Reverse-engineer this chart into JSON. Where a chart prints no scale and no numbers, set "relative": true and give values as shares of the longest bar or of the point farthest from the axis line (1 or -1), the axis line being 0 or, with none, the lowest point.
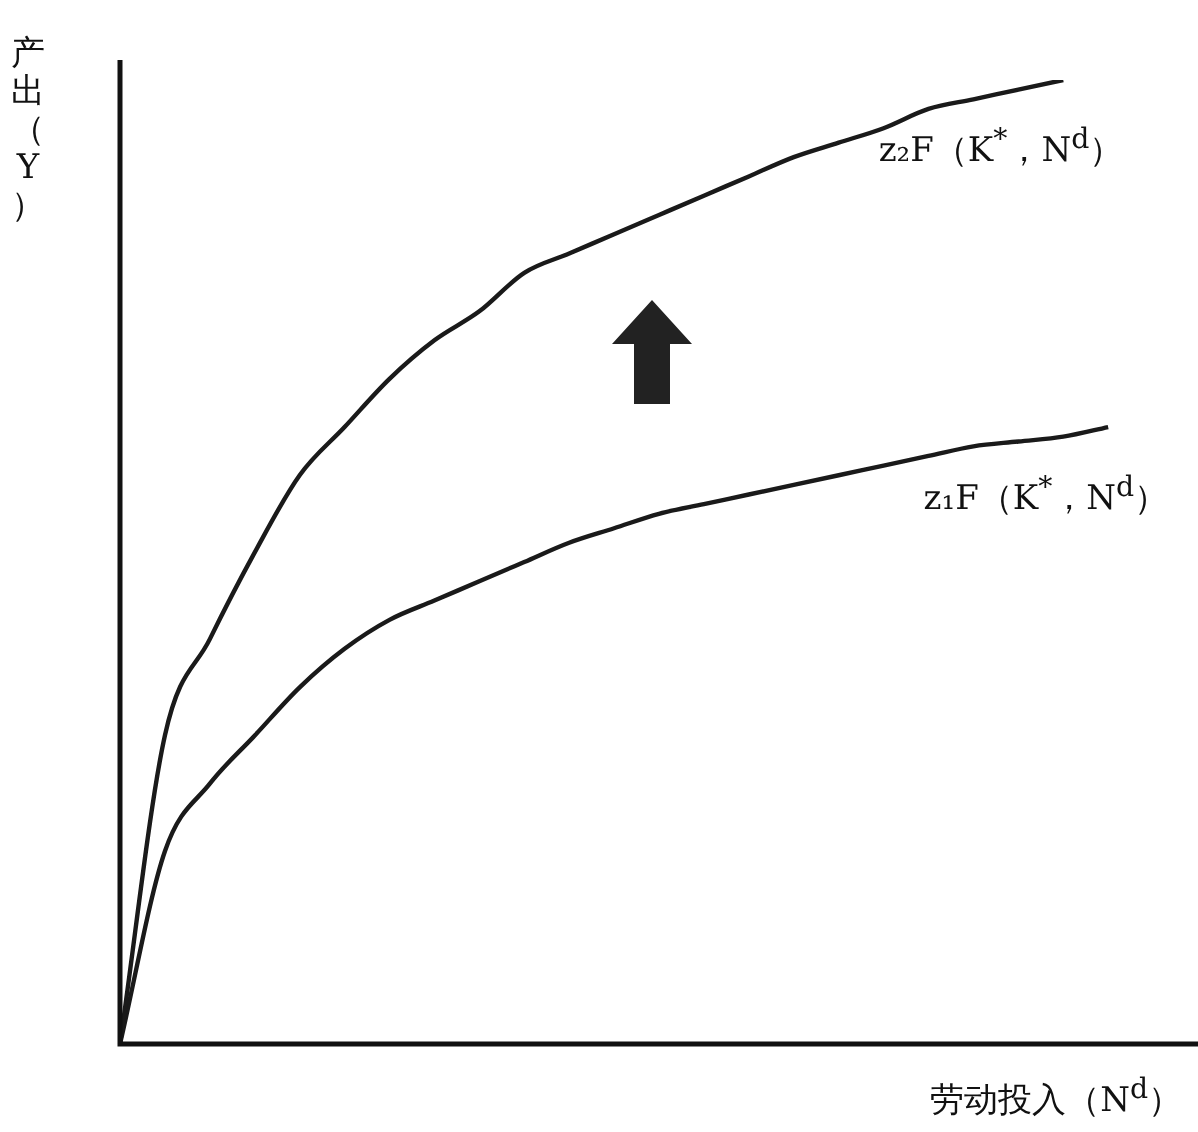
{
  "chart_data": {
    "type": "line",
    "relative": true,
    "xlabel": "劳动投入（N$^{d}$）",
    "ylabel": "产出（Y）",
    "legend": false,
    "grid": false,
    "marker": "none",
    "line_style": "solid",
    "categories": [
      null,
      null,
      null,
      null,
      null,
      null,
      null,
      null,
      null,
      null,
      null,
      null,
      null,
      null,
      null,
      null,
      null,
      null,
      null,
      null,
      null,
      null,
      null,
      null,
      null
    ],
    "series": [
      {
        "name": "z₂F（K$^{*}$，N$^{d}$）",
        "color": "#1a1a1a",
        "values": [
          0,
          0.32,
          0.42,
          0.51,
          0.59,
          0.64,
          0.69,
          0.73,
          0.76,
          0.8,
          0.82,
          0.84,
          0.86,
          0.88,
          0.9,
          0.92,
          0.935,
          0.95,
          0.97,
          0.98,
          0.99,
          1.0,
          null,
          null,
          null
        ]
      },
      {
        "name": "z₁F（K$^{*}$，N$^{d}$）",
        "color": "#1a1a1a",
        "values": [
          0,
          0.2,
          0.27,
          0.32,
          0.37,
          0.41,
          0.44,
          0.46,
          0.48,
          0.5,
          0.52,
          0.535,
          0.55,
          0.56,
          0.57,
          0.58,
          0.59,
          0.6,
          0.61,
          0.62,
          0.625,
          0.63,
          0.64,
          null,
          null
        ]
      }
    ]
  }
}
